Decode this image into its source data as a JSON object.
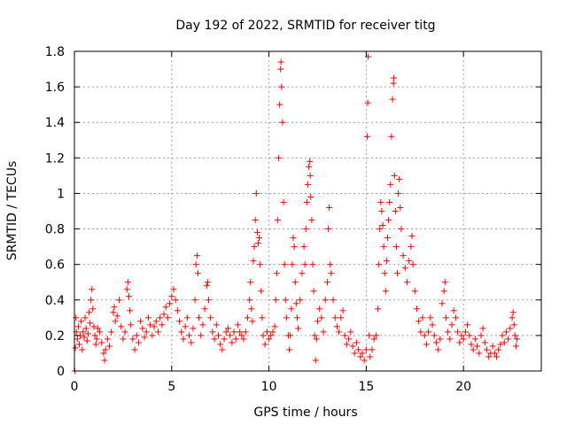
{
  "chart_data": {
    "type": "scatter",
    "title": "Day 192 of 2022, SRMTID for receiver titg",
    "xlabel": "GPS time / hours",
    "ylabel": "SRMTID / TECUs",
    "xlim": [
      0,
      24
    ],
    "ylim": [
      0,
      1.8
    ],
    "xticks": [
      0,
      5,
      10,
      15,
      20
    ],
    "xtick_labels": [
      "0",
      "5",
      "10",
      "15",
      "20"
    ],
    "yticks": [
      0,
      0.2,
      0.4,
      0.6,
      0.8,
      1,
      1.2,
      1.4,
      1.6,
      1.8
    ],
    "ytick_labels": [
      "0",
      "0.2",
      "0.4",
      "0.6",
      "0.8",
      "1",
      "1.2",
      "1.4",
      "1.6",
      "1.8"
    ],
    "grid": true,
    "marker": "+",
    "color": "#ff0000",
    "series": [
      {
        "name": "SRMTID",
        "points": [
          [
            0.02,
            0.0
          ],
          [
            0.05,
            0.13
          ],
          [
            0.08,
            0.3
          ],
          [
            0.1,
            0.22
          ],
          [
            0.15,
            0.18
          ],
          [
            0.2,
            0.25
          ],
          [
            0.25,
            0.15
          ],
          [
            0.3,
            0.2
          ],
          [
            0.35,
            0.28
          ],
          [
            0.4,
            0.12
          ],
          [
            0.45,
            0.22
          ],
          [
            0.5,
            0.19
          ],
          [
            0.55,
            0.3
          ],
          [
            0.6,
            0.24
          ],
          [
            0.65,
            0.17
          ],
          [
            0.7,
            0.21
          ],
          [
            0.75,
            0.33
          ],
          [
            0.8,
            0.27
          ],
          [
            0.85,
            0.4
          ],
          [
            0.9,
            0.46
          ],
          [
            0.95,
            0.35
          ],
          [
            1.0,
            0.25
          ],
          [
            1.05,
            0.2
          ],
          [
            1.1,
            0.15
          ],
          [
            1.15,
            0.18
          ],
          [
            1.2,
            0.24
          ],
          [
            1.3,
            0.22
          ],
          [
            1.4,
            0.16
          ],
          [
            1.5,
            0.1
          ],
          [
            1.55,
            0.06
          ],
          [
            1.6,
            0.12
          ],
          [
            1.7,
            0.18
          ],
          [
            1.8,
            0.14
          ],
          [
            1.9,
            0.22
          ],
          [
            2.0,
            0.33
          ],
          [
            2.05,
            0.36
          ],
          [
            2.1,
            0.28
          ],
          [
            2.2,
            0.31
          ],
          [
            2.3,
            0.4
          ],
          [
            2.4,
            0.25
          ],
          [
            2.5,
            0.18
          ],
          [
            2.6,
            0.22
          ],
          [
            2.7,
            0.46
          ],
          [
            2.75,
            0.5
          ],
          [
            2.8,
            0.42
          ],
          [
            2.85,
            0.34
          ],
          [
            2.9,
            0.26
          ],
          [
            3.0,
            0.18
          ],
          [
            3.1,
            0.12
          ],
          [
            3.2,
            0.2
          ],
          [
            3.3,
            0.16
          ],
          [
            3.4,
            0.28
          ],
          [
            3.5,
            0.24
          ],
          [
            3.6,
            0.19
          ],
          [
            3.7,
            0.22
          ],
          [
            3.8,
            0.3
          ],
          [
            3.9,
            0.26
          ],
          [
            4.0,
            0.2
          ],
          [
            4.1,
            0.25
          ],
          [
            4.2,
            0.28
          ],
          [
            4.3,
            0.22
          ],
          [
            4.4,
            0.3
          ],
          [
            4.5,
            0.26
          ],
          [
            4.6,
            0.32
          ],
          [
            4.7,
            0.36
          ],
          [
            4.8,
            0.3
          ],
          [
            4.9,
            0.38
          ],
          [
            5.0,
            0.42
          ],
          [
            5.1,
            0.46
          ],
          [
            5.2,
            0.4
          ],
          [
            5.3,
            0.34
          ],
          [
            5.4,
            0.28
          ],
          [
            5.5,
            0.22
          ],
          [
            5.6,
            0.18
          ],
          [
            5.7,
            0.25
          ],
          [
            5.8,
            0.3
          ],
          [
            5.9,
            0.2
          ],
          [
            6.0,
            0.16
          ],
          [
            6.1,
            0.24
          ],
          [
            6.2,
            0.4
          ],
          [
            6.25,
            0.6
          ],
          [
            6.3,
            0.65
          ],
          [
            6.35,
            0.55
          ],
          [
            6.4,
            0.3
          ],
          [
            6.5,
            0.2
          ],
          [
            6.6,
            0.26
          ],
          [
            6.7,
            0.35
          ],
          [
            6.8,
            0.48
          ],
          [
            6.85,
            0.5
          ],
          [
            6.9,
            0.4
          ],
          [
            7.0,
            0.3
          ],
          [
            7.1,
            0.22
          ],
          [
            7.2,
            0.18
          ],
          [
            7.3,
            0.26
          ],
          [
            7.4,
            0.2
          ],
          [
            7.5,
            0.15
          ],
          [
            7.6,
            0.12
          ],
          [
            7.7,
            0.18
          ],
          [
            7.8,
            0.22
          ],
          [
            7.9,
            0.24
          ],
          [
            8.0,
            0.2
          ],
          [
            8.1,
            0.16
          ],
          [
            8.2,
            0.22
          ],
          [
            8.3,
            0.18
          ],
          [
            8.4,
            0.26
          ],
          [
            8.5,
            0.22
          ],
          [
            8.6,
            0.2
          ],
          [
            8.7,
            0.18
          ],
          [
            8.8,
            0.22
          ],
          [
            8.9,
            0.3
          ],
          [
            9.0,
            0.4
          ],
          [
            9.05,
            0.5
          ],
          [
            9.1,
            0.35
          ],
          [
            9.15,
            0.28
          ],
          [
            9.2,
            0.62
          ],
          [
            9.25,
            0.7
          ],
          [
            9.3,
            0.85
          ],
          [
            9.35,
            1.0
          ],
          [
            9.4,
            0.78
          ],
          [
            9.45,
            0.72
          ],
          [
            9.5,
            0.75
          ],
          [
            9.55,
            0.6
          ],
          [
            9.6,
            0.45
          ],
          [
            9.65,
            0.3
          ],
          [
            9.7,
            0.2
          ],
          [
            9.8,
            0.15
          ],
          [
            9.9,
            0.22
          ],
          [
            10.0,
            0.18
          ],
          [
            10.1,
            0.2
          ],
          [
            10.2,
            0.22
          ],
          [
            10.3,
            0.25
          ],
          [
            10.35,
            0.4
          ],
          [
            10.4,
            0.55
          ],
          [
            10.45,
            0.85
          ],
          [
            10.5,
            1.2
          ],
          [
            10.55,
            1.5
          ],
          [
            10.6,
            1.7
          ],
          [
            10.62,
            1.74
          ],
          [
            10.65,
            1.6
          ],
          [
            10.7,
            1.4
          ],
          [
            10.75,
            0.95
          ],
          [
            10.8,
            0.6
          ],
          [
            10.85,
            0.4
          ],
          [
            10.9,
            0.3
          ],
          [
            11.0,
            0.2
          ],
          [
            11.05,
            0.12
          ],
          [
            11.1,
            0.2
          ],
          [
            11.15,
            0.35
          ],
          [
            11.2,
            0.6
          ],
          [
            11.25,
            0.75
          ],
          [
            11.3,
            0.7
          ],
          [
            11.35,
            0.5
          ],
          [
            11.4,
            0.38
          ],
          [
            11.45,
            0.3
          ],
          [
            11.5,
            0.24
          ],
          [
            11.6,
            0.4
          ],
          [
            11.7,
            0.55
          ],
          [
            11.8,
            0.7
          ],
          [
            11.85,
            0.6
          ],
          [
            11.9,
            0.8
          ],
          [
            11.95,
            0.95
          ],
          [
            12.0,
            1.05
          ],
          [
            12.05,
            1.15
          ],
          [
            12.1,
            1.18
          ],
          [
            12.12,
            1.1
          ],
          [
            12.15,
            0.98
          ],
          [
            12.2,
            0.85
          ],
          [
            12.25,
            0.6
          ],
          [
            12.3,
            0.45
          ],
          [
            12.35,
            0.2
          ],
          [
            12.4,
            0.06
          ],
          [
            12.45,
            0.18
          ],
          [
            12.5,
            0.28
          ],
          [
            12.6,
            0.35
          ],
          [
            12.7,
            0.3
          ],
          [
            12.8,
            0.22
          ],
          [
            12.9,
            0.4
          ],
          [
            13.0,
            0.5
          ],
          [
            13.05,
            0.8
          ],
          [
            13.1,
            0.92
          ],
          [
            13.15,
            0.6
          ],
          [
            13.2,
            0.55
          ],
          [
            13.3,
            0.4
          ],
          [
            13.4,
            0.3
          ],
          [
            13.5,
            0.25
          ],
          [
            13.6,
            0.22
          ],
          [
            13.7,
            0.3
          ],
          [
            13.8,
            0.34
          ],
          [
            13.9,
            0.2
          ],
          [
            14.0,
            0.15
          ],
          [
            14.1,
            0.18
          ],
          [
            14.2,
            0.22
          ],
          [
            14.3,
            0.14
          ],
          [
            14.4,
            0.1
          ],
          [
            14.5,
            0.16
          ],
          [
            14.6,
            0.12
          ],
          [
            14.7,
            0.08
          ],
          [
            14.8,
            0.1
          ],
          [
            14.9,
            0.06
          ],
          [
            15.0,
            0.12
          ],
          [
            15.05,
            1.32
          ],
          [
            15.08,
            1.51
          ],
          [
            15.1,
            1.77
          ],
          [
            15.15,
            0.2
          ],
          [
            15.2,
            0.08
          ],
          [
            15.3,
            0.12
          ],
          [
            15.4,
            0.18
          ],
          [
            15.5,
            0.2
          ],
          [
            15.6,
            0.35
          ],
          [
            15.65,
            0.6
          ],
          [
            15.7,
            0.8
          ],
          [
            15.75,
            0.95
          ],
          [
            15.8,
            0.9
          ],
          [
            15.85,
            0.82
          ],
          [
            15.9,
            0.7
          ],
          [
            15.95,
            0.55
          ],
          [
            16.0,
            0.45
          ],
          [
            16.05,
            0.62
          ],
          [
            16.1,
            0.75
          ],
          [
            16.15,
            0.85
          ],
          [
            16.2,
            0.95
          ],
          [
            16.25,
            1.05
          ],
          [
            16.3,
            1.32
          ],
          [
            16.35,
            1.53
          ],
          [
            16.4,
            1.62
          ],
          [
            16.42,
            1.65
          ],
          [
            16.45,
            1.1
          ],
          [
            16.5,
            0.9
          ],
          [
            16.55,
            0.7
          ],
          [
            16.6,
            0.55
          ],
          [
            16.65,
            1.0
          ],
          [
            16.7,
            1.08
          ],
          [
            16.75,
            0.92
          ],
          [
            16.8,
            0.8
          ],
          [
            16.9,
            0.65
          ],
          [
            17.0,
            0.58
          ],
          [
            17.1,
            0.5
          ],
          [
            17.2,
            0.62
          ],
          [
            17.3,
            0.7
          ],
          [
            17.35,
            0.76
          ],
          [
            17.4,
            0.6
          ],
          [
            17.5,
            0.45
          ],
          [
            17.6,
            0.35
          ],
          [
            17.7,
            0.28
          ],
          [
            17.8,
            0.22
          ],
          [
            17.9,
            0.3
          ],
          [
            18.0,
            0.2
          ],
          [
            18.1,
            0.15
          ],
          [
            18.2,
            0.22
          ],
          [
            18.3,
            0.3
          ],
          [
            18.4,
            0.26
          ],
          [
            18.5,
            0.2
          ],
          [
            18.6,
            0.16
          ],
          [
            18.7,
            0.12
          ],
          [
            18.8,
            0.18
          ],
          [
            18.9,
            0.38
          ],
          [
            19.0,
            0.45
          ],
          [
            19.05,
            0.5
          ],
          [
            19.1,
            0.3
          ],
          [
            19.2,
            0.22
          ],
          [
            19.3,
            0.18
          ],
          [
            19.4,
            0.26
          ],
          [
            19.5,
            0.34
          ],
          [
            19.6,
            0.3
          ],
          [
            19.7,
            0.22
          ],
          [
            19.8,
            0.16
          ],
          [
            19.9,
            0.2
          ],
          [
            20.0,
            0.18
          ],
          [
            20.1,
            0.22
          ],
          [
            20.2,
            0.26
          ],
          [
            20.3,
            0.2
          ],
          [
            20.4,
            0.15
          ],
          [
            20.5,
            0.12
          ],
          [
            20.6,
            0.18
          ],
          [
            20.7,
            0.14
          ],
          [
            20.8,
            0.1
          ],
          [
            20.9,
            0.2
          ],
          [
            21.0,
            0.24
          ],
          [
            21.1,
            0.16
          ],
          [
            21.2,
            0.12
          ],
          [
            21.3,
            0.08
          ],
          [
            21.4,
            0.1
          ],
          [
            21.5,
            0.14
          ],
          [
            21.6,
            0.1
          ],
          [
            21.7,
            0.08
          ],
          [
            21.8,
            0.12
          ],
          [
            21.9,
            0.15
          ],
          [
            22.0,
            0.2
          ],
          [
            22.1,
            0.16
          ],
          [
            22.2,
            0.22
          ],
          [
            22.3,
            0.18
          ],
          [
            22.4,
            0.24
          ],
          [
            22.5,
            0.3
          ],
          [
            22.55,
            0.33
          ],
          [
            22.6,
            0.26
          ],
          [
            22.65,
            0.2
          ],
          [
            22.7,
            0.14
          ],
          [
            22.75,
            0.18
          ]
        ]
      }
    ]
  }
}
